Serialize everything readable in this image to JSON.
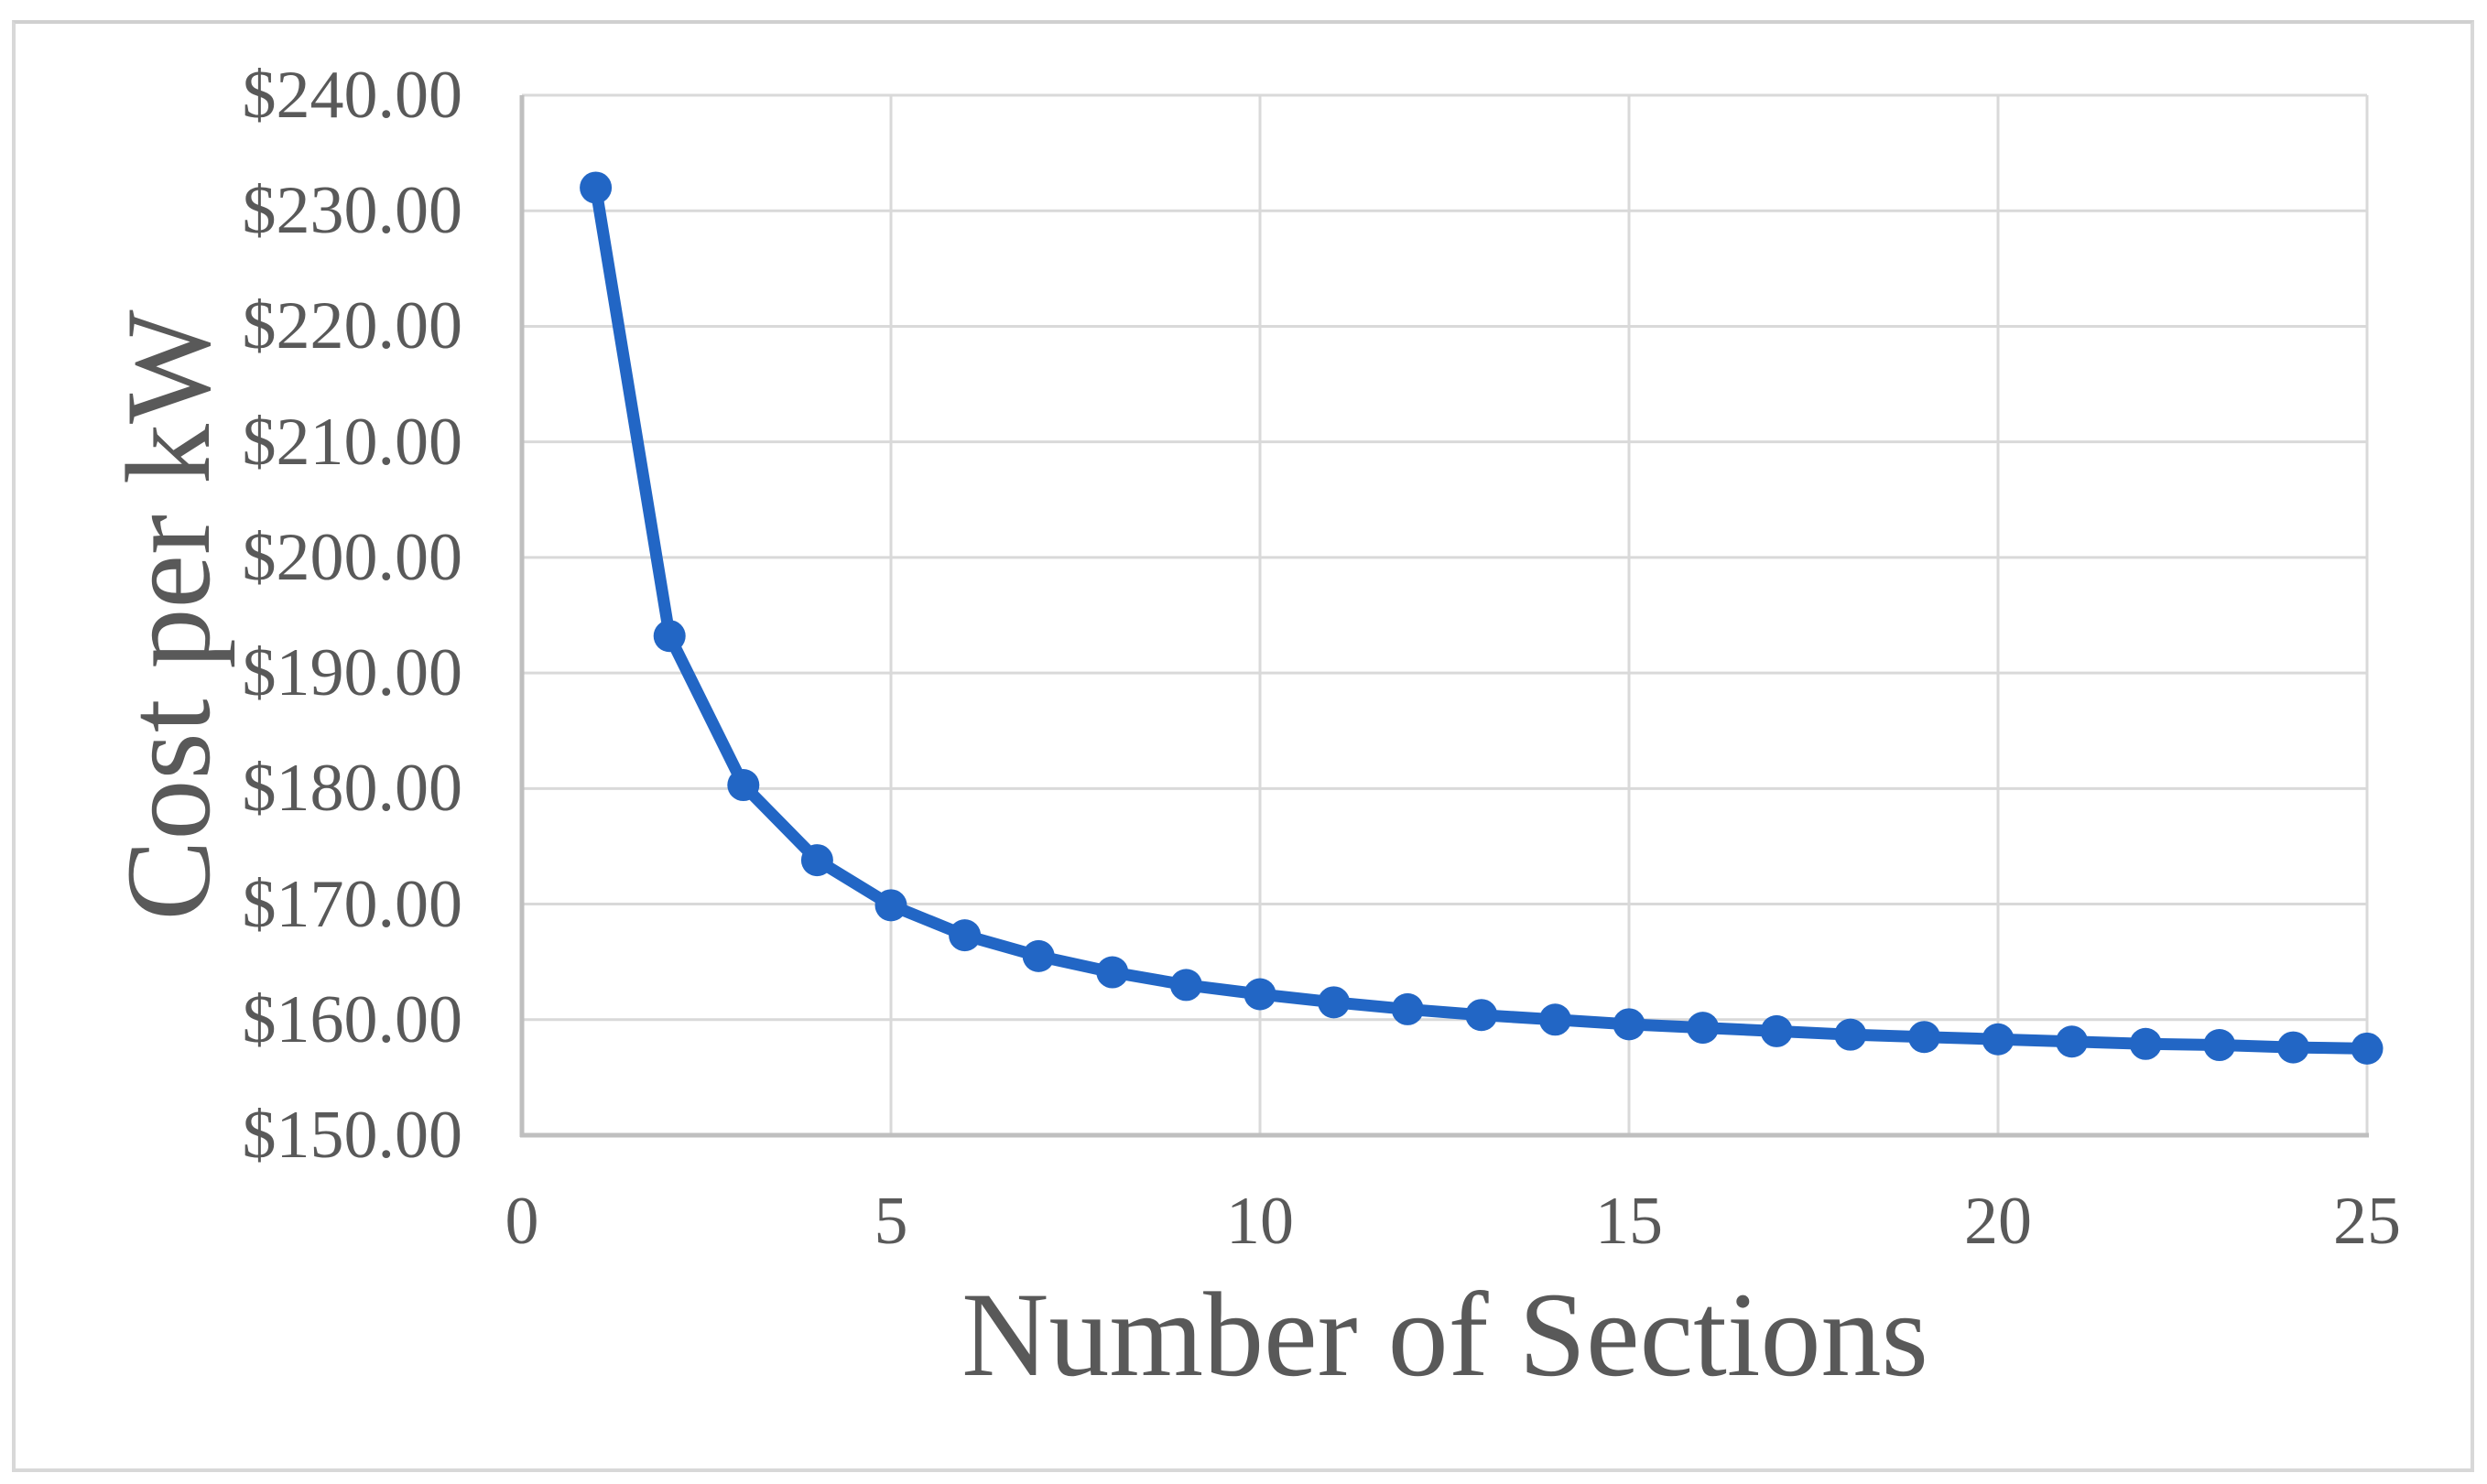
{
  "figure": {
    "background_color": "#ffffff",
    "border_color": "#d8d8d8"
  },
  "colors": {
    "series": "#2266c5",
    "gridline": "#d9d9d9",
    "axis_line": "#bfbfbf",
    "text": "#595959"
  },
  "chart_data": {
    "type": "line",
    "title": "",
    "xlabel": "Number of Sections",
    "ylabel": "Cost per kW",
    "legend": "none",
    "grid": true,
    "xlim": [
      0,
      25
    ],
    "ylim": [
      150,
      240
    ],
    "x_ticks": [
      0,
      5,
      10,
      15,
      20,
      25
    ],
    "x_tick_labels": [
      "0",
      "5",
      "10",
      "15",
      "20",
      "25"
    ],
    "y_ticks": [
      150,
      160,
      170,
      180,
      190,
      200,
      210,
      220,
      230,
      240
    ],
    "y_tick_labels": [
      "$150.00",
      "$160.00",
      "$170.00",
      "$180.00",
      "$190.00",
      "$200.00",
      "$210.00",
      "$220.00",
      "$230.00",
      "$240.00"
    ],
    "marker": "circle",
    "x": [
      1,
      2,
      3,
      4,
      5,
      6,
      7,
      8,
      9,
      10,
      11,
      12,
      13,
      14,
      15,
      16,
      17,
      18,
      19,
      20,
      21,
      22,
      23,
      24,
      25
    ],
    "values": [
      232.0,
      193.2,
      180.3,
      173.8,
      169.9,
      167.3,
      165.5,
      164.1,
      163.0,
      162.2,
      161.5,
      160.9,
      160.4,
      160.0,
      159.6,
      159.3,
      159.0,
      158.7,
      158.5,
      158.3,
      158.1,
      157.9,
      157.8,
      157.6,
      157.5
    ]
  }
}
